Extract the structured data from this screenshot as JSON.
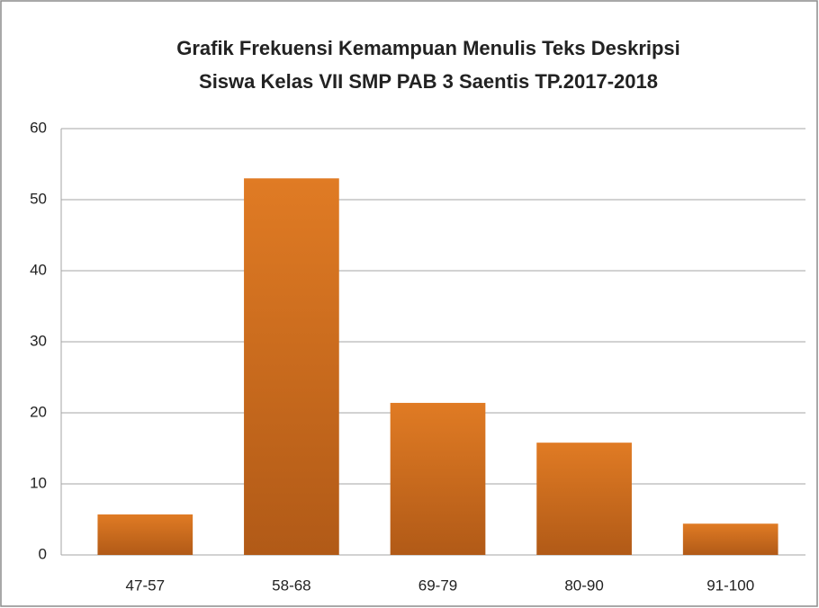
{
  "chart_data": {
    "type": "bar",
    "title": [
      "Grafik Frekuensi Kemampuan Menulis Teks Deskripsi",
      "Siswa Kelas VII SMP PAB 3 Saentis TP.2017-2018"
    ],
    "categories": [
      "47-57",
      "58-68",
      "69-79",
      "80-90",
      "91-100"
    ],
    "values": [
      5.7,
      53,
      21.4,
      15.8,
      4.4
    ],
    "color": "#e07b24",
    "ylim": [
      0,
      60
    ],
    "yticks": [
      0,
      10,
      20,
      30,
      40,
      50,
      60
    ],
    "grid": true
  }
}
